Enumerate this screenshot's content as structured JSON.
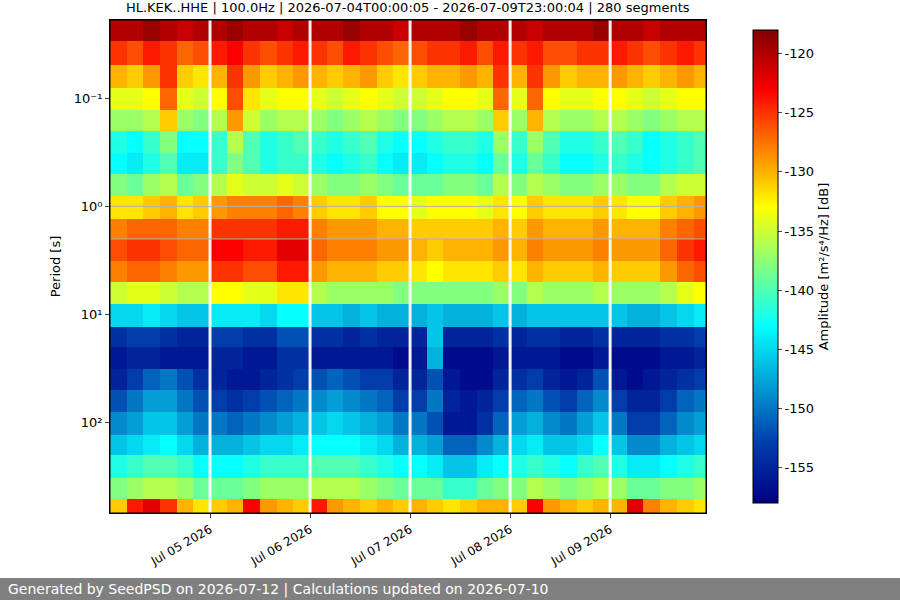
{
  "chart_data": {
    "type": "heatmap",
    "title": "HL.KEK..HHE | 100.0Hz | 2026-07-04T00:00:05 - 2026-07-09T23:00:04 | 280 segments",
    "y_label": "Period [s]",
    "footer": "Generated by SeedPSD on 2026-07-12 | Calculations updated on 2026-07-10",
    "log": "y",
    "grid": true,
    "color": "Jet",
    "x": [
      "2026-07-04 02:00",
      "2026-07-04 06:00",
      "2026-07-04 10:00",
      "2026-07-04 14:00",
      "2026-07-04 18:00",
      "2026-07-04 22:00",
      "2026-07-05 02:00",
      "2026-07-05 06:00",
      "2026-07-05 10:00",
      "2026-07-05 14:00",
      "2026-07-05 18:00",
      "2026-07-05 22:00",
      "2026-07-06 02:00",
      "2026-07-06 06:00",
      "2026-07-06 10:00",
      "2026-07-06 14:00",
      "2026-07-06 18:00",
      "2026-07-06 22:00",
      "2026-07-07 02:00",
      "2026-07-07 06:00",
      "2026-07-07 10:00",
      "2026-07-07 14:00",
      "2026-07-07 18:00",
      "2026-07-07 22:00",
      "2026-07-08 02:00",
      "2026-07-08 06:00",
      "2026-07-08 10:00",
      "2026-07-08 14:00",
      "2026-07-08 18:00",
      "2026-07-08 22:00",
      "2026-07-09 02:00",
      "2026-07-09 06:00",
      "2026-07-09 10:00",
      "2026-07-09 14:00",
      "2026-07-09 18:00",
      "2026-07-09 22:00"
    ],
    "period_edges": [
      0.019,
      0.03,
      0.05,
      0.08,
      0.13,
      0.2,
      0.32,
      0.5,
      0.8,
      1.3,
      2,
      3.2,
      5,
      8,
      13,
      20,
      32,
      50,
      80,
      130,
      200,
      320,
      500,
      680
    ],
    "z": [
      [
        -120,
        -120,
        -119,
        -120,
        -121,
        -120,
        -120,
        -119,
        -120,
        -120,
        -121,
        -120,
        -120,
        -120,
        -119,
        -120,
        -120,
        -121,
        -120,
        -120,
        -120,
        -119,
        -120,
        -120,
        -120,
        -121,
        -120,
        -120,
        -120,
        -119,
        -120,
        -120,
        -121,
        -120,
        -120,
        -120
      ],
      [
        -125,
        -126,
        -124,
        -125,
        -127,
        -126,
        -124,
        -123,
        -125,
        -126,
        -125,
        -124,
        -125,
        -126,
        -124,
        -125,
        -126,
        -127,
        -126,
        -125,
        -125,
        -124,
        -126,
        -124,
        -125,
        -124,
        -126,
        -126,
        -125,
        -125,
        -124,
        -125,
        -126,
        -125,
        -124,
        -125
      ],
      [
        -130,
        -131,
        -129,
        -125,
        -131,
        -132,
        -130,
        -125,
        -129,
        -131,
        -130,
        -129,
        -130,
        -131,
        -130,
        -129,
        -131,
        -132,
        -131,
        -130,
        -130,
        -129,
        -130,
        -125,
        -130,
        -125,
        -129,
        -131,
        -130,
        -130,
        -129,
        -130,
        -131,
        -130,
        -129,
        -130
      ],
      [
        -134,
        -134,
        -133,
        -127,
        -134,
        -135,
        -133,
        -126,
        -132,
        -134,
        -133,
        -133,
        -134,
        -135,
        -134,
        -133,
        -134,
        -135,
        -135,
        -134,
        -133,
        -133,
        -134,
        -127,
        -134,
        -127,
        -133,
        -134,
        -134,
        -133,
        -133,
        -134,
        -135,
        -134,
        -133,
        -133
      ],
      [
        -137,
        -137,
        -136,
        -131,
        -137,
        -138,
        -136,
        -129,
        -135,
        -137,
        -136,
        -136,
        -137,
        -138,
        -137,
        -136,
        -137,
        -138,
        -138,
        -137,
        -136,
        -136,
        -137,
        -131,
        -137,
        -130,
        -136,
        -137,
        -137,
        -136,
        -136,
        -137,
        -138,
        -137,
        -136,
        -136
      ],
      [
        -142,
        -143,
        -141,
        -138,
        -143,
        -143,
        -141,
        -136,
        -140,
        -142,
        -141,
        -140,
        -141,
        -142,
        -141,
        -140,
        -142,
        -143,
        -143,
        -142,
        -141,
        -141,
        -142,
        -137,
        -141,
        -137,
        -140,
        -142,
        -142,
        -141,
        -140,
        -141,
        -143,
        -142,
        -141,
        -140
      ],
      [
        -143,
        -144,
        -142,
        -140,
        -144,
        -144,
        -141,
        -138,
        -140,
        -142,
        -141,
        -141,
        -142,
        -143,
        -142,
        -141,
        -143,
        -144,
        -144,
        -143,
        -142,
        -142,
        -143,
        -139,
        -142,
        -139,
        -141,
        -143,
        -143,
        -142,
        -141,
        -142,
        -143,
        -142,
        -141,
        -140
      ],
      [
        -138,
        -139,
        -137,
        -136,
        -139,
        -138,
        -136,
        -134,
        -135,
        -135,
        -134,
        -135,
        -137,
        -138,
        -138,
        -137,
        -138,
        -139,
        -139,
        -139,
        -138,
        -138,
        -139,
        -136,
        -138,
        -136,
        -137,
        -138,
        -138,
        -137,
        -137,
        -138,
        -138,
        -136,
        -135,
        -135
      ],
      [
        -132,
        -132,
        -131,
        -130,
        -132,
        -131,
        -129,
        -128,
        -128,
        -128,
        -127,
        -128,
        -131,
        -132,
        -132,
        -131,
        -133,
        -133,
        -134,
        -133,
        -133,
        -133,
        -134,
        -132,
        -133,
        -131,
        -132,
        -132,
        -132,
        -131,
        -132,
        -133,
        -133,
        -131,
        -130,
        -129
      ],
      [
        -128,
        -127,
        -127,
        -127,
        -128,
        -128,
        -125,
        -125,
        -125,
        -125,
        -124,
        -124,
        -128,
        -129,
        -129,
        -129,
        -130,
        -130,
        -131,
        -131,
        -131,
        -131,
        -131,
        -130,
        -131,
        -129,
        -130,
        -130,
        -130,
        -129,
        -130,
        -130,
        -130,
        -128,
        -127,
        -126
      ],
      [
        -126,
        -125,
        -125,
        -126,
        -127,
        -127,
        -123,
        -123,
        -124,
        -124,
        -122,
        -122,
        -127,
        -128,
        -128,
        -128,
        -129,
        -129,
        -130,
        -131,
        -130,
        -130,
        -130,
        -129,
        -130,
        -128,
        -129,
        -129,
        -129,
        -128,
        -129,
        -129,
        -129,
        -127,
        -125,
        -124
      ],
      [
        -128,
        -127,
        -127,
        -128,
        -129,
        -129,
        -125,
        -125,
        -126,
        -126,
        -124,
        -124,
        -129,
        -130,
        -130,
        -130,
        -131,
        -131,
        -132,
        -133,
        -132,
        -132,
        -132,
        -131,
        -132,
        -130,
        -131,
        -131,
        -131,
        -130,
        -131,
        -131,
        -131,
        -129,
        -127,
        -126
      ],
      [
        -135,
        -134,
        -134,
        -135,
        -136,
        -136,
        -133,
        -133,
        -134,
        -134,
        -132,
        -132,
        -136,
        -137,
        -137,
        -137,
        -137,
        -138,
        -138,
        -138,
        -138,
        -138,
        -138,
        -137,
        -138,
        -136,
        -137,
        -137,
        -137,
        -136,
        -137,
        -137,
        -137,
        -136,
        -134,
        -133
      ],
      [
        -145,
        -145,
        -144,
        -145,
        -146,
        -146,
        -144,
        -144,
        -144,
        -145,
        -143,
        -143,
        -146,
        -146,
        -147,
        -146,
        -147,
        -147,
        -147,
        -146,
        -147,
        -147,
        -147,
        -146,
        -147,
        -146,
        -146,
        -146,
        -146,
        -146,
        -146,
        -147,
        -147,
        -146,
        -145,
        -144
      ],
      [
        -154,
        -153,
        -153,
        -154,
        -155,
        -155,
        -153,
        -153,
        -154,
        -154,
        -152,
        -152,
        -154,
        -154,
        -155,
        -154,
        -155,
        -155,
        -155,
        -146,
        -155,
        -155,
        -155,
        -154,
        -155,
        -154,
        -154,
        -155,
        -155,
        -154,
        -155,
        -155,
        -155,
        -154,
        -154,
        -153
      ],
      [
        -156,
        -155,
        -155,
        -156,
        -156,
        -156,
        -155,
        -155,
        -156,
        -156,
        -154,
        -154,
        -156,
        -156,
        -156,
        -156,
        -156,
        -157,
        -156,
        -147,
        -157,
        -157,
        -157,
        -156,
        -156,
        -156,
        -156,
        -157,
        -157,
        -156,
        -157,
        -157,
        -157,
        -156,
        -156,
        -155
      ],
      [
        -155,
        -153,
        -151,
        -150,
        -152,
        -154,
        -155,
        -156,
        -156,
        -155,
        -154,
        -153,
        -152,
        -151,
        -152,
        -153,
        -153,
        -155,
        -155,
        -152,
        -156,
        -157,
        -157,
        -155,
        -154,
        -153,
        -155,
        -156,
        -155,
        -152,
        -156,
        -157,
        -156,
        -155,
        -154,
        -153
      ],
      [
        -152,
        -150,
        -148,
        -148,
        -150,
        -152,
        -153,
        -154,
        -153,
        -152,
        -151,
        -150,
        -149,
        -148,
        -149,
        -150,
        -151,
        -153,
        -153,
        -150,
        -155,
        -156,
        -155,
        -153,
        -151,
        -150,
        -152,
        -153,
        -151,
        -149,
        -153,
        -155,
        -155,
        -153,
        -151,
        -150
      ],
      [
        -149,
        -148,
        -146,
        -146,
        -148,
        -150,
        -150,
        -151,
        -150,
        -149,
        -148,
        -147,
        -146,
        -145,
        -146,
        -147,
        -148,
        -150,
        -150,
        -152,
        -156,
        -156,
        -154,
        -151,
        -148,
        -147,
        -149,
        -150,
        -148,
        -146,
        -150,
        -153,
        -153,
        -151,
        -149,
        -148
      ],
      [
        -146,
        -145,
        -144,
        -143,
        -145,
        -147,
        -147,
        -147,
        -146,
        -145,
        -145,
        -144,
        -143,
        -143,
        -143,
        -144,
        -145,
        -147,
        -147,
        -148,
        -151,
        -151,
        -149,
        -147,
        -145,
        -144,
        -146,
        -146,
        -145,
        -143,
        -146,
        -149,
        -149,
        -147,
        -146,
        -145
      ],
      [
        -142,
        -141,
        -140,
        -140,
        -141,
        -143,
        -143,
        -143,
        -142,
        -141,
        -141,
        -141,
        -140,
        -140,
        -140,
        -141,
        -142,
        -143,
        -143,
        -144,
        -146,
        -146,
        -144,
        -143,
        -142,
        -141,
        -142,
        -143,
        -141,
        -140,
        -142,
        -144,
        -144,
        -143,
        -142,
        -141
      ],
      [
        -138,
        -137,
        -136,
        -136,
        -137,
        -139,
        -139,
        -139,
        -138,
        -137,
        -137,
        -137,
        -136,
        -136,
        -136,
        -137,
        -138,
        -139,
        -139,
        -139,
        -141,
        -141,
        -139,
        -138,
        -138,
        -136,
        -137,
        -138,
        -137,
        -136,
        -137,
        -139,
        -139,
        -138,
        -138,
        -137
      ],
      [
        -131,
        -124,
        -122,
        -125,
        -130,
        -132,
        -131,
        -130,
        -123,
        -129,
        -130,
        -131,
        -124,
        -129,
        -130,
        -131,
        -130,
        -131,
        -130,
        -131,
        -132,
        -131,
        -130,
        -130,
        -131,
        -123,
        -129,
        -130,
        -131,
        -130,
        -130,
        -122,
        -128,
        -130,
        -131,
        -132
      ]
    ],
    "xlim": [
      "2026-07-04 00:00:05",
      "2026-07-09 23:00:04"
    ],
    "xticks": [
      {
        "value": "2026-07-05",
        "label": "Jul 05 2026"
      },
      {
        "value": "2026-07-06",
        "label": "Jul 06 2026"
      },
      {
        "value": "2026-07-07",
        "label": "Jul 07 2026"
      },
      {
        "value": "2026-07-08",
        "label": "Jul 08 2026"
      },
      {
        "value": "2026-07-09",
        "label": "Jul 09 2026"
      }
    ],
    "ylim": [
      0.019,
      680
    ],
    "yticks": [
      {
        "value": 0.1,
        "label": "10⁻¹"
      },
      {
        "value": 1,
        "label": "10⁰"
      },
      {
        "value": 10,
        "label": "10¹"
      },
      {
        "value": 100,
        "label": "10²"
      }
    ],
    "colorbar": {
      "title": "Amplitude [m²/s⁴/Hz] [dB]",
      "range": [
        -158,
        -118
      ],
      "ticks": [
        -155,
        -150,
        -145,
        -140,
        -135,
        -130,
        -125,
        -120
      ]
    }
  }
}
